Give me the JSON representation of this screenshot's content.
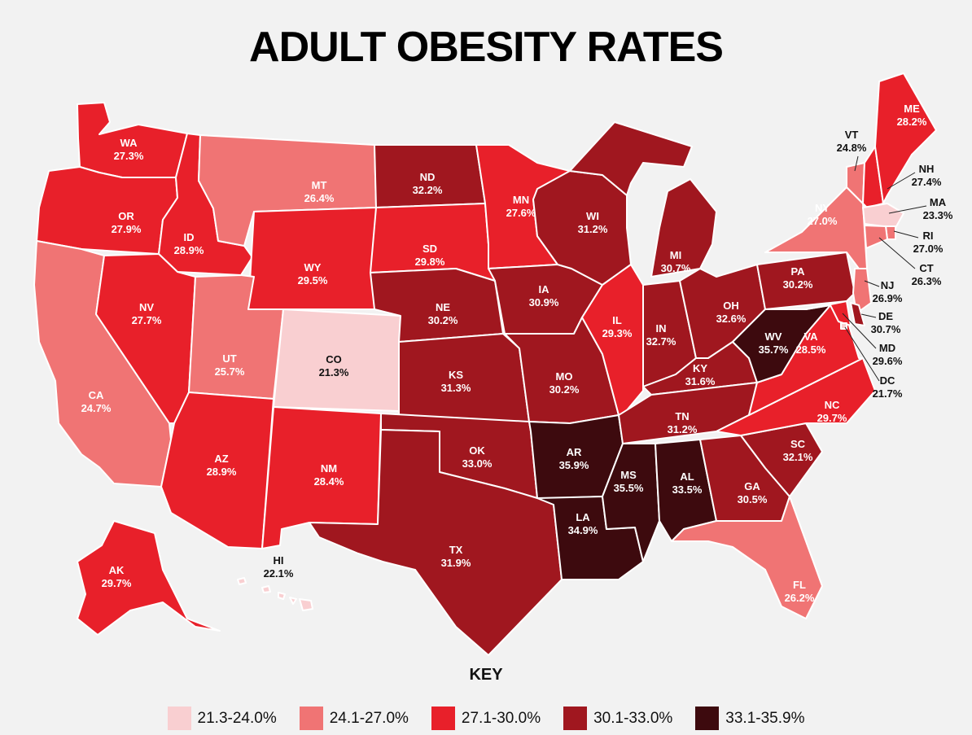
{
  "title": "ADULT OBESITY RATES",
  "key_title": "KEY",
  "legend": [
    {
      "label": "21.3-24.0%",
      "color": "#f9cfd1"
    },
    {
      "label": "24.1-27.0%",
      "color": "#f07474"
    },
    {
      "label": "27.1-30.0%",
      "color": "#e8202a"
    },
    {
      "label": "30.1-33.0%",
      "color": "#a0171f"
    },
    {
      "label": "33.1-35.9%",
      "color": "#3d0a0e"
    }
  ],
  "states": [
    {
      "abbr": "WA",
      "rate": "27.3%",
      "bin": 2
    },
    {
      "abbr": "OR",
      "rate": "27.9%",
      "bin": 2
    },
    {
      "abbr": "CA",
      "rate": "24.7%",
      "bin": 1
    },
    {
      "abbr": "ID",
      "rate": "28.9%",
      "bin": 2
    },
    {
      "abbr": "NV",
      "rate": "27.7%",
      "bin": 2
    },
    {
      "abbr": "MT",
      "rate": "26.4%",
      "bin": 1
    },
    {
      "abbr": "WY",
      "rate": "29.5%",
      "bin": 2
    },
    {
      "abbr": "UT",
      "rate": "25.7%",
      "bin": 1
    },
    {
      "abbr": "CO",
      "rate": "21.3%",
      "bin": 0
    },
    {
      "abbr": "AZ",
      "rate": "28.9%",
      "bin": 2
    },
    {
      "abbr": "NM",
      "rate": "28.4%",
      "bin": 2
    },
    {
      "abbr": "ND",
      "rate": "32.2%",
      "bin": 3
    },
    {
      "abbr": "SD",
      "rate": "29.8%",
      "bin": 2
    },
    {
      "abbr": "NE",
      "rate": "30.2%",
      "bin": 3
    },
    {
      "abbr": "KS",
      "rate": "31.3%",
      "bin": 3
    },
    {
      "abbr": "OK",
      "rate": "33.0%",
      "bin": 3
    },
    {
      "abbr": "TX",
      "rate": "31.9%",
      "bin": 3
    },
    {
      "abbr": "MN",
      "rate": "27.6%",
      "bin": 2
    },
    {
      "abbr": "IA",
      "rate": "30.9%",
      "bin": 3
    },
    {
      "abbr": "MO",
      "rate": "30.2%",
      "bin": 3
    },
    {
      "abbr": "AR",
      "rate": "35.9%",
      "bin": 4
    },
    {
      "abbr": "LA",
      "rate": "34.9%",
      "bin": 4
    },
    {
      "abbr": "WI",
      "rate": "31.2%",
      "bin": 3
    },
    {
      "abbr": "IL",
      "rate": "29.3%",
      "bin": 2
    },
    {
      "abbr": "MI",
      "rate": "30.7%",
      "bin": 3
    },
    {
      "abbr": "IN",
      "rate": "32.7%",
      "bin": 3
    },
    {
      "abbr": "OH",
      "rate": "32.6%",
      "bin": 3
    },
    {
      "abbr": "KY",
      "rate": "31.6%",
      "bin": 3
    },
    {
      "abbr": "TN",
      "rate": "31.2%",
      "bin": 3
    },
    {
      "abbr": "MS",
      "rate": "35.5%",
      "bin": 4
    },
    {
      "abbr": "AL",
      "rate": "33.5%",
      "bin": 4
    },
    {
      "abbr": "GA",
      "rate": "30.5%",
      "bin": 3
    },
    {
      "abbr": "FL",
      "rate": "26.2%",
      "bin": 1
    },
    {
      "abbr": "SC",
      "rate": "32.1%",
      "bin": 3
    },
    {
      "abbr": "NC",
      "rate": "29.7%",
      "bin": 2
    },
    {
      "abbr": "VA",
      "rate": "28.5%",
      "bin": 2
    },
    {
      "abbr": "WV",
      "rate": "35.7%",
      "bin": 4
    },
    {
      "abbr": "PA",
      "rate": "30.2%",
      "bin": 3
    },
    {
      "abbr": "NY",
      "rate": "27.0%",
      "bin": 1
    },
    {
      "abbr": "VT",
      "rate": "24.8%",
      "bin": 1
    },
    {
      "abbr": "NH",
      "rate": "27.4%",
      "bin": 2
    },
    {
      "abbr": "ME",
      "rate": "28.2%",
      "bin": 2
    },
    {
      "abbr": "MA",
      "rate": "23.3%",
      "bin": 0
    },
    {
      "abbr": "RI",
      "rate": "27.0%",
      "bin": 1
    },
    {
      "abbr": "CT",
      "rate": "26.3%",
      "bin": 1
    },
    {
      "abbr": "NJ",
      "rate": "26.9%",
      "bin": 1
    },
    {
      "abbr": "DE",
      "rate": "30.7%",
      "bin": 3
    },
    {
      "abbr": "MD",
      "rate": "29.6%",
      "bin": 2
    },
    {
      "abbr": "DC",
      "rate": "21.7%",
      "bin": 0
    },
    {
      "abbr": "AK",
      "rate": "29.7%",
      "bin": 2
    },
    {
      "abbr": "HI",
      "rate": "22.1%",
      "bin": 0
    }
  ]
}
